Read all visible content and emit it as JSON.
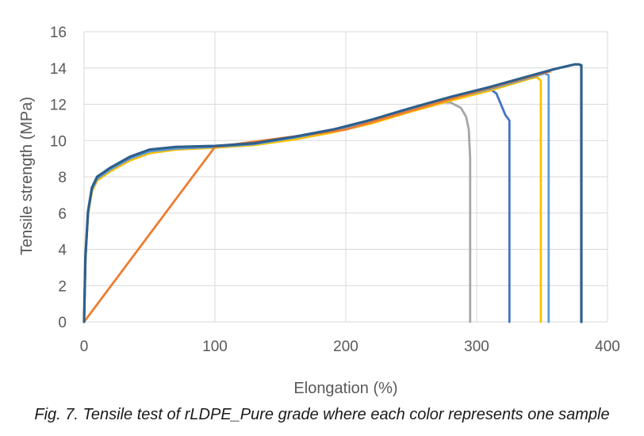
{
  "caption": "Fig. 7. Tensile test of rLDPE_Pure grade where each color represents one sample",
  "chart_data": {
    "type": "line",
    "title": "",
    "xlabel": "Elongation (%)",
    "ylabel": "Tensile strength (MPa)",
    "xlim": [
      0,
      400
    ],
    "ylim": [
      0,
      16
    ],
    "xticks": [
      0,
      100,
      200,
      300,
      400
    ],
    "yticks": [
      0,
      2,
      4,
      6,
      8,
      10,
      12,
      14,
      16
    ],
    "grid": "vertical and horizontal major gridlines",
    "legend": "none",
    "series": [
      {
        "color": "#a6a6a6",
        "x": [
          0,
          1,
          3,
          6,
          10,
          20,
          35,
          50,
          70,
          100,
          130,
          160,
          190,
          220,
          250,
          275,
          280,
          288,
          292,
          294,
          295,
          295
        ],
        "y": [
          0,
          3.5,
          6.0,
          7.2,
          7.8,
          8.3,
          8.9,
          9.3,
          9.5,
          9.65,
          9.8,
          10.1,
          10.5,
          11.0,
          11.6,
          12.1,
          12.1,
          11.8,
          11.3,
          10.6,
          9,
          0
        ]
      },
      {
        "color": "#4472c4",
        "x": [
          0,
          1,
          3,
          6,
          10,
          20,
          35,
          50,
          70,
          100,
          130,
          160,
          190,
          220,
          250,
          280,
          310,
          315,
          322,
          325,
          325,
          325
        ],
        "y": [
          0,
          3.5,
          6.0,
          7.3,
          7.9,
          8.4,
          9.0,
          9.4,
          9.55,
          9.65,
          9.8,
          10.15,
          10.55,
          11.1,
          11.7,
          12.3,
          12.85,
          12.6,
          11.4,
          11.1,
          10.9,
          0
        ]
      },
      {
        "color": "#ffc000",
        "x": [
          0,
          1,
          3,
          6,
          10,
          20,
          35,
          50,
          70,
          100,
          130,
          160,
          190,
          220,
          250,
          280,
          310,
          340,
          346,
          349,
          349
        ],
        "y": [
          0,
          3.4,
          5.9,
          7.2,
          7.8,
          8.3,
          8.9,
          9.3,
          9.5,
          9.6,
          9.75,
          10.05,
          10.45,
          10.95,
          11.6,
          12.2,
          12.75,
          13.4,
          13.5,
          13.3,
          0
        ]
      },
      {
        "color": "#5b9bd5",
        "x": [
          0,
          1,
          3,
          6,
          10,
          20,
          35,
          50,
          70,
          100,
          130,
          160,
          190,
          220,
          250,
          280,
          310,
          340,
          352,
          355,
          355
        ],
        "y": [
          0,
          3.5,
          6.0,
          7.3,
          7.9,
          8.4,
          9.0,
          9.4,
          9.55,
          9.65,
          9.8,
          10.15,
          10.55,
          11.1,
          11.7,
          12.3,
          12.85,
          13.45,
          13.7,
          13.6,
          0
        ]
      },
      {
        "color": "#ed7d31",
        "x": [
          0,
          100,
          200,
          300,
          350,
          356
        ],
        "y": [
          0,
          9.65,
          10.6,
          12.7,
          13.7,
          13.8
        ]
      },
      {
        "color": "#2f5f8a",
        "x": [
          0,
          1,
          3,
          6,
          10,
          20,
          35,
          50,
          70,
          100,
          130,
          160,
          190,
          220,
          250,
          280,
          310,
          340,
          360,
          375,
          378,
          380,
          380
        ],
        "y": [
          0,
          3.6,
          6.1,
          7.4,
          8.0,
          8.5,
          9.1,
          9.5,
          9.65,
          9.7,
          9.85,
          10.2,
          10.6,
          11.15,
          11.8,
          12.4,
          12.95,
          13.55,
          13.95,
          14.2,
          14.2,
          14.15,
          0
        ]
      }
    ]
  }
}
